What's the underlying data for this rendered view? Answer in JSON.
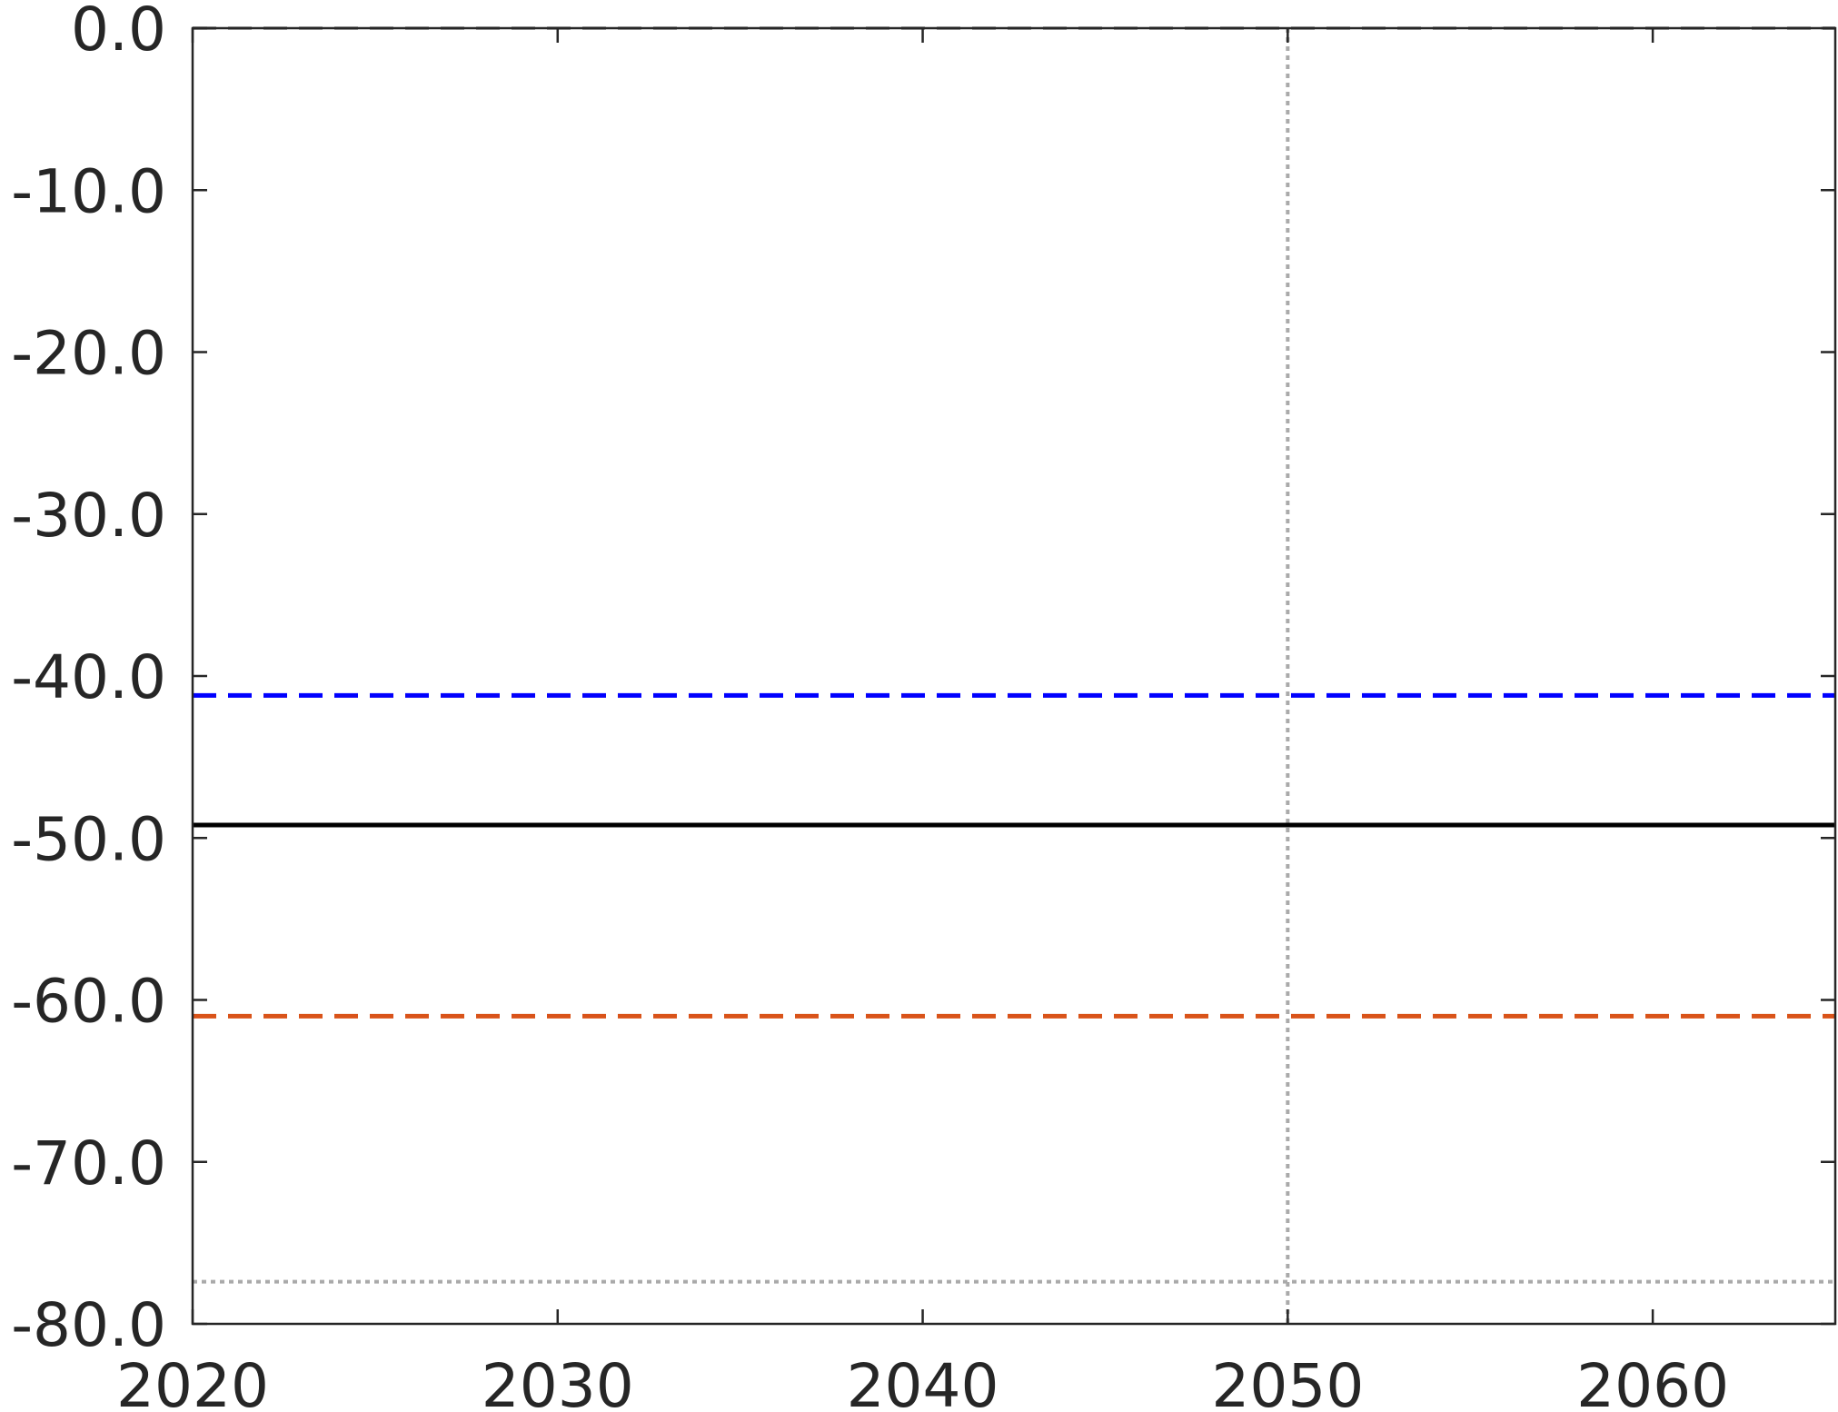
{
  "chart_data": {
    "type": "line",
    "title": "",
    "xlabel": "",
    "ylabel": "",
    "xlim": [
      2020,
      2065
    ],
    "ylim": [
      -80,
      0
    ],
    "x_ticks": [
      2020,
      2030,
      2040,
      2050,
      2060
    ],
    "x_tick_labels": [
      "2020",
      "2030",
      "2040",
      "2050",
      "2060"
    ],
    "y_ticks": [
      0,
      -10,
      -20,
      -30,
      -40,
      -50,
      -60,
      -70,
      -80
    ],
    "y_tick_labels": [
      "0.0",
      "-10.0",
      "-20.0",
      "-30.0",
      "-40.0",
      "-50.0",
      "-60.0",
      "-70.0",
      "-80.0"
    ],
    "grid": false,
    "reference_lines": [
      {
        "orientation": "vertical",
        "x": 2050,
        "style": "dotted",
        "color": "#aaaaaa"
      },
      {
        "orientation": "horizontal",
        "y": 0,
        "style": "dashed",
        "color": "#aaaaaa"
      },
      {
        "orientation": "horizontal",
        "y": -77.4,
        "style": "dotted",
        "color": "#aaaaaa"
      }
    ],
    "series": [
      {
        "x": [
          2020,
          2065
        ],
        "values": [
          -41.2,
          -41.2
        ],
        "color": "#0000ff",
        "style": "dashed"
      },
      {
        "x": [
          2020,
          2065
        ],
        "values": [
          -49.2,
          -49.2
        ],
        "color": "#000000",
        "style": "solid"
      },
      {
        "x": [
          2020,
          2065
        ],
        "values": [
          -61.0,
          -61.0
        ],
        "color": "#d95319",
        "style": "dashed"
      }
    ]
  }
}
